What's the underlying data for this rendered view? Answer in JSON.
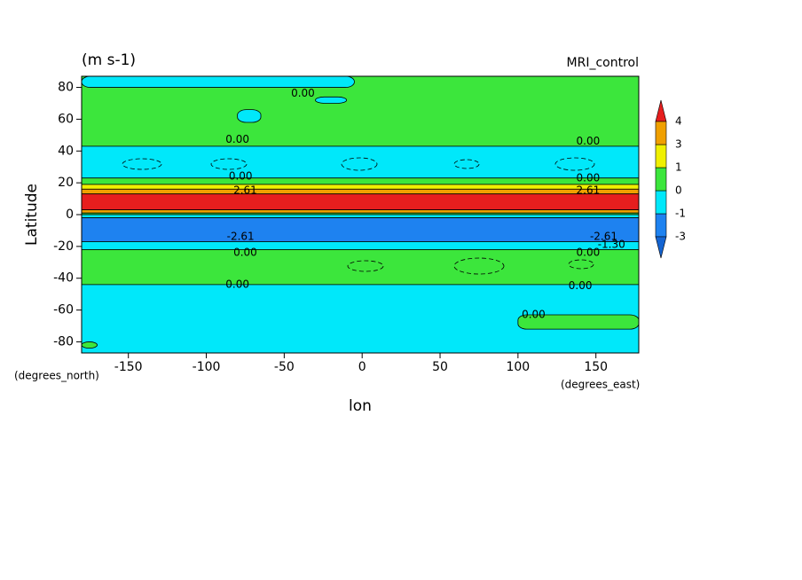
{
  "chart_data": {
    "type": "contour",
    "title": "(m s-1)",
    "subtitle": "MRI_control",
    "x_label": "lon",
    "y_label": "Latitude",
    "x_units": "(degrees_east)",
    "y_units": "(degrees_north)",
    "xlim": [
      -180,
      177.5
    ],
    "ylim": [
      -87,
      87
    ],
    "xticks": [
      -150,
      -100,
      -50,
      0,
      50,
      100,
      150
    ],
    "yticks": [
      -80,
      -60,
      -40,
      -20,
      0,
      20,
      40,
      60,
      80
    ],
    "class_colors": [
      "#1464d2",
      "#1e82f0",
      "#00e8fa",
      "#3ce63c",
      "#f0f000",
      "#f0a000",
      "#e61e1e"
    ],
    "colorbar_levels": [
      -3,
      -1,
      0,
      1,
      3,
      4
    ],
    "bands": [
      {
        "lat_range": [
          43,
          87
        ],
        "level": 3
      },
      {
        "lat_range": [
          23,
          43
        ],
        "level": 2
      },
      {
        "lat_range": [
          19,
          23
        ],
        "level": 3
      },
      {
        "lat_range": [
          16,
          19
        ],
        "level": 4
      },
      {
        "lat_range": [
          13,
          16
        ],
        "level": 5
      },
      {
        "lat_range": [
          3,
          13
        ],
        "level": 6
      },
      {
        "lat_range": [
          1,
          3
        ],
        "level": 5
      },
      {
        "lat_range": [
          0,
          1
        ],
        "level": 3
      },
      {
        "lat_range": [
          -2,
          0
        ],
        "level": 2
      },
      {
        "lat_range": [
          -17,
          -2
        ],
        "level": 1
      },
      {
        "lat_range": [
          -22,
          -17
        ],
        "level": 2
      },
      {
        "lat_range": [
          -44,
          -22
        ],
        "level": 3
      },
      {
        "lat_range": [
          -87,
          -44
        ],
        "level": 2
      }
    ],
    "patches": [
      {
        "lon_range": [
          -180,
          -5
        ],
        "lat_range": [
          80,
          87
        ],
        "level": 2
      },
      {
        "lon_range": [
          -80,
          -65
        ],
        "lat_range": [
          58,
          66
        ],
        "level": 2
      },
      {
        "lon_range": [
          -30,
          -10
        ],
        "lat_range": [
          70,
          74
        ],
        "level": 2
      },
      {
        "lon_range": [
          100,
          177.5
        ],
        "lat_range": [
          -72,
          -63
        ],
        "level": 3
      },
      {
        "lon_range": [
          -180,
          -170
        ],
        "lat_range": [
          -84,
          -80
        ],
        "level": 3
      }
    ],
    "contour_labels": [
      {
        "text": "0.00",
        "lon": -38,
        "lat": 76
      },
      {
        "text": "0.00",
        "lon": -80,
        "lat": 47
      },
      {
        "text": "0.00",
        "lon": 145,
        "lat": 46
      },
      {
        "text": "0.00",
        "lon": -78,
        "lat": 24
      },
      {
        "text": "0.00",
        "lon": 145,
        "lat": 23
      },
      {
        "text": "2.61",
        "lon": -75,
        "lat": 15
      },
      {
        "text": "2.61",
        "lon": 145,
        "lat": 15
      },
      {
        "text": "-2.61",
        "lon": -78,
        "lat": -14
      },
      {
        "text": "-2.61",
        "lon": 155,
        "lat": -14
      },
      {
        "text": "-1.30",
        "lon": 160,
        "lat": -19
      },
      {
        "text": "0.00",
        "lon": -75,
        "lat": -24
      },
      {
        "text": "0.00",
        "lon": 145,
        "lat": -24
      },
      {
        "text": "0.00",
        "lon": -80,
        "lat": -44
      },
      {
        "text": "0.00",
        "lon": 140,
        "lat": -45
      },
      {
        "text": "0.00",
        "lon": 110,
        "lat": -63
      }
    ]
  }
}
